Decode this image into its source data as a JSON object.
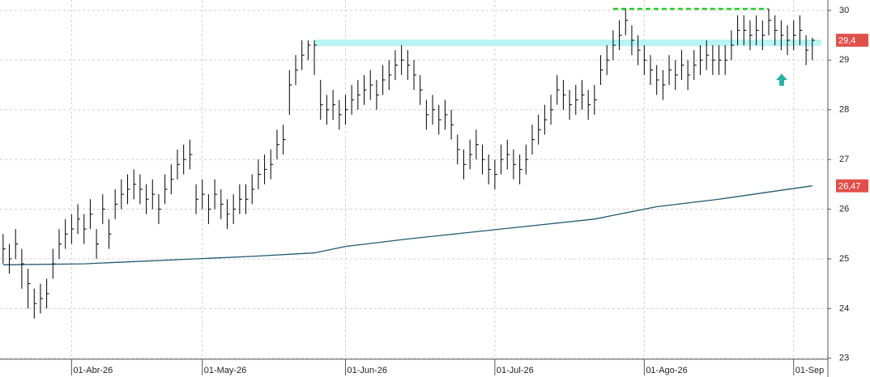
{
  "chart_data": {
    "type": "ohlc",
    "xlim": [
      -0.5,
      132.5
    ],
    "xticks": [
      {
        "value": 11,
        "label": "01-Abr-26"
      },
      {
        "value": 32,
        "label": "01-May-26"
      },
      {
        "value": 55,
        "label": "01-Jun-26"
      },
      {
        "value": 79,
        "label": "01-Jul-26"
      },
      {
        "value": 103,
        "label": "01-Ago-26"
      },
      {
        "value": 127,
        "label": "01-Sep"
      }
    ],
    "ylim": [
      22.98,
      30.21
    ],
    "yticks": [
      23,
      24,
      25,
      26,
      27,
      28,
      29,
      30
    ],
    "grid": true,
    "bar_color": "#000000",
    "high": [
      25.5,
      25.3,
      25.6,
      25.2,
      24.8,
      24.4,
      24.5,
      24.6,
      25.2,
      25.6,
      25.8,
      25.9,
      26.1,
      25.9,
      26.2,
      25.6,
      26.3,
      25.8,
      26.4,
      26.6,
      26.7,
      26.8,
      26.7,
      26.5,
      26.6,
      26.3,
      26.7,
      26.9,
      27.2,
      27.3,
      27.4,
      26.5,
      26.6,
      26.3,
      26.6,
      26.4,
      26.2,
      26.3,
      26.5,
      26.5,
      26.7,
      27.0,
      27.1,
      27.2,
      27.6,
      27.7,
      28.8,
      29.1,
      29.4,
      29.4,
      29.4,
      28.6,
      28.3,
      28.4,
      28.2,
      28.3,
      28.5,
      28.6,
      28.7,
      28.8,
      28.6,
      28.9,
      29.0,
      29.2,
      29.3,
      29.2,
      29.0,
      28.7,
      28.2,
      28.3,
      28.1,
      28.2,
      28.0,
      27.5,
      27.2,
      27.4,
      27.6,
      27.3,
      27.1,
      27.0,
      27.3,
      27.4,
      27.2,
      27.1,
      27.3,
      27.7,
      27.9,
      28.1,
      28.3,
      28.7,
      28.6,
      28.4,
      28.5,
      28.6,
      28.4,
      28.5,
      29.1,
      29.3,
      29.6,
      29.8,
      30.03,
      29.7,
      29.5,
      29.3,
      29.1,
      28.9,
      28.8,
      29.1,
      29.0,
      29.2,
      29.0,
      29.2,
      29.3,
      29.4,
      29.3,
      29.3,
      29.3,
      29.6,
      29.9,
      29.9,
      29.8,
      29.9,
      29.8,
      30.03,
      29.9,
      29.8,
      29.7,
      29.8,
      29.9,
      29.5,
      29.45
    ],
    "low": [
      24.9,
      24.7,
      25.0,
      24.4,
      24.0,
      23.8,
      23.9,
      24.0,
      24.6,
      25.0,
      25.2,
      25.3,
      25.5,
      25.3,
      25.6,
      25.0,
      25.7,
      25.2,
      25.8,
      26.0,
      26.1,
      26.2,
      26.1,
      25.9,
      26.0,
      25.7,
      26.1,
      26.3,
      26.6,
      26.7,
      26.8,
      25.9,
      26.0,
      25.7,
      26.0,
      25.8,
      25.6,
      25.7,
      25.9,
      25.9,
      26.1,
      26.4,
      26.5,
      26.6,
      27.0,
      27.1,
      27.9,
      28.5,
      28.8,
      29.0,
      28.7,
      27.8,
      27.7,
      27.8,
      27.6,
      27.7,
      27.9,
      28.0,
      28.1,
      28.2,
      28.0,
      28.3,
      28.4,
      28.6,
      28.7,
      28.6,
      28.4,
      28.1,
      27.6,
      27.7,
      27.5,
      27.6,
      27.4,
      26.9,
      26.6,
      26.8,
      27.0,
      26.7,
      26.5,
      26.4,
      26.7,
      26.8,
      26.6,
      26.5,
      26.7,
      27.1,
      27.3,
      27.5,
      27.7,
      28.1,
      28.0,
      27.8,
      27.9,
      28.0,
      27.8,
      27.9,
      28.5,
      28.7,
      29.0,
      29.2,
      29.5,
      29.1,
      28.9,
      28.7,
      28.5,
      28.3,
      28.2,
      28.5,
      28.4,
      28.6,
      28.4,
      28.6,
      28.7,
      28.8,
      28.7,
      28.7,
      28.7,
      29.0,
      29.3,
      29.3,
      29.2,
      29.3,
      29.2,
      29.5,
      29.3,
      29.2,
      29.1,
      29.2,
      29.3,
      28.9,
      29.0
    ],
    "close": [
      25.2,
      25.0,
      25.3,
      24.9,
      24.5,
      24.1,
      24.2,
      24.3,
      24.9,
      25.3,
      25.5,
      25.6,
      25.8,
      25.6,
      25.9,
      25.3,
      26.0,
      25.5,
      26.1,
      26.3,
      26.4,
      26.5,
      26.4,
      26.2,
      26.3,
      26.0,
      26.4,
      26.6,
      26.9,
      27.0,
      27.1,
      26.2,
      26.3,
      26.0,
      26.3,
      26.1,
      25.9,
      26.0,
      26.2,
      26.2,
      26.4,
      26.7,
      26.8,
      26.9,
      27.3,
      27.4,
      28.5,
      28.8,
      29.1,
      29.3,
      29.3,
      28.1,
      28.0,
      28.1,
      27.9,
      28.0,
      28.2,
      28.3,
      28.4,
      28.5,
      28.3,
      28.6,
      28.7,
      28.9,
      29.0,
      28.9,
      28.7,
      28.4,
      27.9,
      28.0,
      27.8,
      27.9,
      27.7,
      27.2,
      26.9,
      27.1,
      27.3,
      27.0,
      26.8,
      26.7,
      27.0,
      27.1,
      26.9,
      26.8,
      27.0,
      27.4,
      27.6,
      27.8,
      28.0,
      28.4,
      28.3,
      28.1,
      28.2,
      28.3,
      28.1,
      28.2,
      28.8,
      29.0,
      29.3,
      29.5,
      29.8,
      29.4,
      29.2,
      29.0,
      28.8,
      28.6,
      28.5,
      28.8,
      28.7,
      28.9,
      28.7,
      28.9,
      29.0,
      29.1,
      29.0,
      29.0,
      29.0,
      29.3,
      29.6,
      29.6,
      29.5,
      29.6,
      29.5,
      29.8,
      29.6,
      29.5,
      29.4,
      29.5,
      29.6,
      29.2,
      29.4
    ],
    "moving_average": {
      "color": "#1d5a72",
      "x": [
        0,
        13,
        40,
        50,
        55,
        65,
        80,
        95,
        105,
        115,
        125,
        130
      ],
      "values": [
        24.88,
        24.9,
        25.05,
        25.12,
        25.25,
        25.4,
        25.6,
        25.8,
        26.05,
        26.2,
        26.38,
        26.47
      ]
    },
    "resistance": {
      "color": "#22cc22",
      "value": 30.03,
      "x": [
        98,
        123
      ]
    },
    "support_band": {
      "color": "#b8f4f4",
      "value": 29.35,
      "x": [
        50,
        131.5
      ]
    },
    "price_tags": [
      {
        "value": 29.4,
        "label": "29,4"
      },
      {
        "value": 26.47,
        "label": "26,47"
      }
    ],
    "tag_color": "#e0504a"
  }
}
